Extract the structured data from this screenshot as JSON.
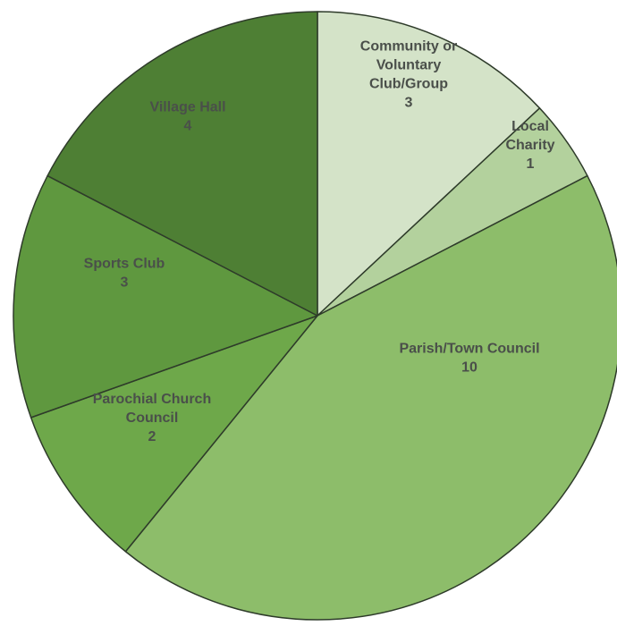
{
  "chart_data": {
    "type": "pie",
    "start": "12 o'clock",
    "direction": "clockwise",
    "slices": [
      {
        "label": [
          "Community or",
          "Voluntary",
          "Club/Group"
        ],
        "value": 3,
        "value_label": "3",
        "color": "#d4e3c8"
      },
      {
        "label": [
          "Local",
          "Charity"
        ],
        "value": 1,
        "value_label": "1",
        "color": "#b3d19d"
      },
      {
        "label": [
          "Parish/Town Council"
        ],
        "value": 10,
        "value_label": "10",
        "color": "#8dbd6a"
      },
      {
        "label": [
          "Parochial Church",
          "Council"
        ],
        "value": 2,
        "value_label": "2",
        "color": "#6ea84a"
      },
      {
        "label": [
          "Sports Club"
        ],
        "value": 3,
        "value_label": "3",
        "color": "#5f983f"
      },
      {
        "label": [
          "Village Hall"
        ],
        "value": 4,
        "value_label": "4",
        "color": "#4e7f34"
      }
    ],
    "edge_color": "#2e3b2a"
  }
}
